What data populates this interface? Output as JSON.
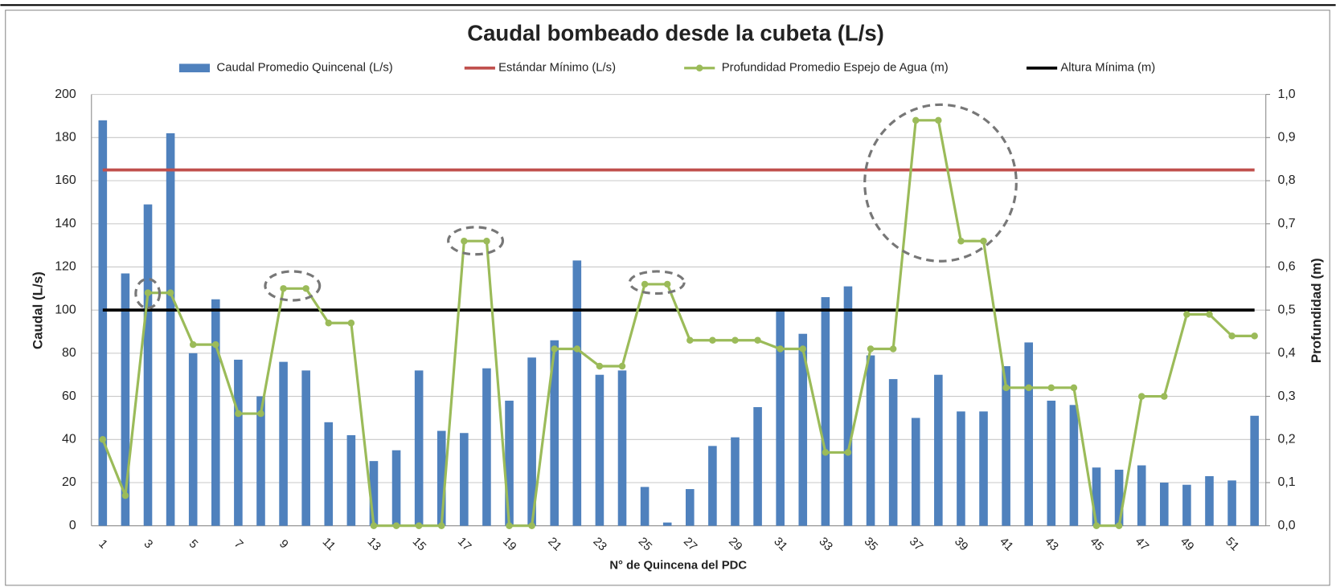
{
  "chart_data": {
    "type": "bar_line",
    "title": "Caudal bombeado desde la cubeta (L/s)",
    "x_label": "N° de Quincena del PDC",
    "y_label": "Caudal (L/s)",
    "y2_label": "Profundidad (m)",
    "categories": [
      1,
      null,
      3,
      null,
      5,
      null,
      7,
      null,
      9,
      null,
      11,
      null,
      13,
      null,
      15,
      null,
      17,
      null,
      19,
      null,
      21,
      null,
      23,
      null,
      25,
      null,
      27,
      null,
      29,
      null,
      31,
      null,
      33,
      null,
      35,
      null,
      37,
      null,
      39,
      null,
      41,
      null,
      43,
      null,
      45,
      null,
      47,
      null,
      49,
      null,
      51,
      null
    ],
    "series": [
      {
        "name": "Caudal Promedio Quincenal (L/s)",
        "type": "bar",
        "color": "#4f81bd",
        "values": [
          188,
          117,
          149,
          182,
          80,
          105,
          77,
          60,
          76,
          72,
          48,
          42,
          30,
          35,
          72,
          44,
          43,
          73,
          58,
          78,
          86,
          123,
          70,
          72,
          18,
          1.5,
          17,
          37,
          41,
          55,
          100,
          89,
          106,
          111,
          79,
          68,
          50,
          70,
          53,
          53,
          74,
          85,
          58,
          56,
          27,
          26,
          28,
          20,
          19,
          23,
          21,
          51
        ]
      },
      {
        "name": "Profundidad Promedio Espejo de Agua (m)",
        "type": "line",
        "axis": "y2",
        "color": "#9bbb59",
        "values": [
          0.2,
          0.07,
          0.54,
          0.54,
          0.42,
          0.42,
          0.26,
          0.26,
          0.55,
          0.55,
          0.47,
          0.47,
          0,
          0,
          0,
          0,
          0.66,
          0.66,
          0,
          0,
          0.41,
          0.41,
          0.37,
          0.37,
          0.56,
          0.56,
          0.43,
          0.43,
          0.43,
          0.43,
          0.41,
          0.41,
          0.17,
          0.17,
          0.41,
          0.41,
          0.94,
          0.94,
          0.66,
          0.66,
          0.32,
          0.32,
          0.32,
          0.32,
          0,
          0,
          0.3,
          0.3,
          0.49,
          0.49,
          0.44,
          0.44
        ]
      }
    ],
    "reference_lines": [
      {
        "name": "Estándar Mínimo (L/s)",
        "value": 165,
        "color": "#c0504d"
      },
      {
        "name": "Altura Mínima (m)",
        "value": 0.5,
        "axis": "y2",
        "color": "#000000"
      }
    ],
    "legend_order": [
      {
        "kind": "series",
        "index": 0
      },
      {
        "kind": "ref",
        "index": 0
      },
      {
        "kind": "series",
        "index": 1
      },
      {
        "kind": "ref",
        "index": 1
      }
    ],
    "ylim": [
      0,
      200
    ],
    "yticks": [
      0,
      20,
      40,
      60,
      80,
      100,
      120,
      140,
      160,
      180,
      200
    ],
    "y2lim": [
      0,
      1
    ],
    "y2ticks": [
      {
        "value": 0,
        "label": "0,0"
      },
      {
        "value": 0.1,
        "label": "0,1"
      },
      {
        "value": 0.2,
        "label": "0,2"
      },
      {
        "value": 0.3,
        "label": "0,3"
      },
      {
        "value": 0.4,
        "label": "0,4"
      },
      {
        "value": 0.5,
        "label": "0,5"
      },
      {
        "value": 0.6,
        "label": "0,6"
      },
      {
        "value": 0.7,
        "label": "0,7"
      },
      {
        "value": 0.8,
        "label": "0,8"
      },
      {
        "value": 0.9,
        "label": "0,9"
      },
      {
        "value": 1,
        "label": "1,0"
      }
    ],
    "grid": true,
    "legend": "top"
  }
}
